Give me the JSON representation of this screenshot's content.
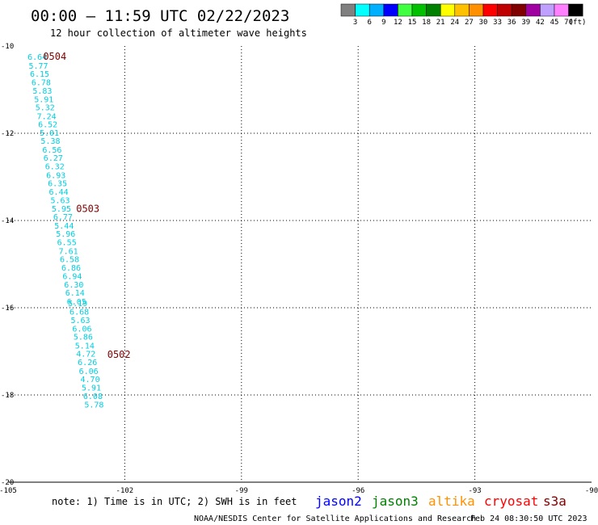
{
  "header": {
    "title": "00:00 — 11:59 UTC 02/22/2023",
    "subtitle": "12 hour collection of altimeter wave heights"
  },
  "color_scale": {
    "labels": [
      "3",
      "6",
      "9",
      "12",
      "15",
      "18",
      "21",
      "24",
      "27",
      "30",
      "33",
      "36",
      "39",
      "42",
      "45",
      "70"
    ],
    "unit": "(ft)",
    "colors": [
      "#808080",
      "#00ffff",
      "#00b0ff",
      "#0000ff",
      "#40ff40",
      "#00c000",
      "#008000",
      "#ffff00",
      "#ffc000",
      "#ff9000",
      "#ff0000",
      "#c00000",
      "#800000",
      "#a000a0",
      "#c0a0ff",
      "#ff80ff",
      "#000000"
    ]
  },
  "footer": {
    "note": "note:  1) Time is in UTC; 2) SWH is in feet",
    "satellites": [
      {
        "name": "jason2",
        "color": "#0000ff"
      },
      {
        "name": "jason3",
        "color": "#008000"
      },
      {
        "name": "altika",
        "color": "#ff9000"
      },
      {
        "name": "cryosat",
        "color": "#ff0000"
      },
      {
        "name": "s3a",
        "color": "#800000"
      }
    ],
    "credit": "NOAA/NESDIS Center for Satellite Applications and Research",
    "timestamp": "Feb 24 08:30:50 UTC 2023"
  },
  "chart_data": {
    "type": "scatter",
    "title": "00:00 — 11:59 UTC 02/22/2023",
    "subtitle": "12 hour collection of altimeter wave heights",
    "xlim": [
      -105,
      -90
    ],
    "ylim": [
      -20,
      -10
    ],
    "x_ticks": [
      "-105",
      "-102",
      "-99",
      "-96",
      "-93",
      "-90"
    ],
    "y_ticks": [
      "-10",
      "-12",
      "-14",
      "-16",
      "-18",
      "-20"
    ],
    "x_tick_values": [
      -105,
      -102,
      -99,
      -96,
      -93,
      -90
    ],
    "y_tick_values": [
      -10,
      -12,
      -14,
      -16,
      -18,
      -20
    ],
    "grid": true,
    "value_color": "#00cfe0",
    "pass_label_color": "#800000",
    "pass_labels": [
      {
        "text": "0504",
        "lon": -104.1,
        "lat": -10.24
      },
      {
        "text": "0503",
        "lon": -103.25,
        "lat": -13.73
      },
      {
        "text": "0502",
        "lon": -102.45,
        "lat": -17.07
      }
    ],
    "points": [
      {
        "label": "6.64",
        "lon": -104.5,
        "lat": -10.24
      },
      {
        "label": "5.77",
        "lon": -104.47,
        "lat": -10.44
      },
      {
        "label": "6.15",
        "lon": -104.44,
        "lat": -10.63
      },
      {
        "label": "6.78",
        "lon": -104.4,
        "lat": -10.82
      },
      {
        "label": "5.83",
        "lon": -104.37,
        "lat": -11.02
      },
      {
        "label": "5.91",
        "lon": -104.33,
        "lat": -11.21
      },
      {
        "label": "5.32",
        "lon": -104.3,
        "lat": -11.4
      },
      {
        "label": "7.24",
        "lon": -104.26,
        "lat": -11.6
      },
      {
        "label": "6.52",
        "lon": -104.23,
        "lat": -11.79
      },
      {
        "label": "5.01",
        "lon": -104.19,
        "lat": -11.98
      },
      {
        "label": "5.38",
        "lon": -104.16,
        "lat": -12.17
      },
      {
        "label": "6.56",
        "lon": -104.12,
        "lat": -12.37
      },
      {
        "label": "6.27",
        "lon": -104.09,
        "lat": -12.56
      },
      {
        "label": "6.32",
        "lon": -104.05,
        "lat": -12.75
      },
      {
        "label": "6.93",
        "lon": -104.02,
        "lat": -12.95
      },
      {
        "label": "6.35",
        "lon": -103.98,
        "lat": -13.14
      },
      {
        "label": "6.44",
        "lon": -103.95,
        "lat": -13.33
      },
      {
        "label": "5.63",
        "lon": -103.91,
        "lat": -13.53
      },
      {
        "label": "5.95",
        "lon": -103.88,
        "lat": -13.72
      },
      {
        "label": "6.77",
        "lon": -103.84,
        "lat": -13.91
      },
      {
        "label": "5.44",
        "lon": -103.81,
        "lat": -14.11
      },
      {
        "label": "5.96",
        "lon": -103.77,
        "lat": -14.3
      },
      {
        "label": "6.55",
        "lon": -103.74,
        "lat": -14.49
      },
      {
        "label": "7.61",
        "lon": -103.7,
        "lat": -14.69
      },
      {
        "label": "6.58",
        "lon": -103.67,
        "lat": -14.88
      },
      {
        "label": "6.86",
        "lon": -103.63,
        "lat": -15.07
      },
      {
        "label": "6.94",
        "lon": -103.6,
        "lat": -15.27
      },
      {
        "label": "6.30",
        "lon": -103.56,
        "lat": -15.46
      },
      {
        "label": "6.14",
        "lon": -103.53,
        "lat": -15.65
      },
      {
        "label": "6.05",
        "lon": -103.49,
        "lat": -15.85
      },
      {
        "label": "5.19",
        "lon": -103.46,
        "lat": -15.89
      },
      {
        "label": "6.68",
        "lon": -103.42,
        "lat": -16.08
      },
      {
        "label": "5.63",
        "lon": -103.39,
        "lat": -16.28
      },
      {
        "label": "6.06",
        "lon": -103.35,
        "lat": -16.47
      },
      {
        "label": "5.86",
        "lon": -103.32,
        "lat": -16.66
      },
      {
        "label": "5.14",
        "lon": -103.28,
        "lat": -16.86
      },
      {
        "label": "4.72",
        "lon": -103.25,
        "lat": -17.05
      },
      {
        "label": "6.26",
        "lon": -103.21,
        "lat": -17.24
      },
      {
        "label": "6.06",
        "lon": -103.18,
        "lat": -17.44
      },
      {
        "label": "4.70",
        "lon": -103.14,
        "lat": -17.63
      },
      {
        "label": "5.91",
        "lon": -103.11,
        "lat": -17.82
      },
      {
        "label": "6.08",
        "lon": -103.07,
        "lat": -18.02
      },
      {
        "label": "5.78",
        "lon": -103.04,
        "lat": -18.21
      }
    ]
  }
}
